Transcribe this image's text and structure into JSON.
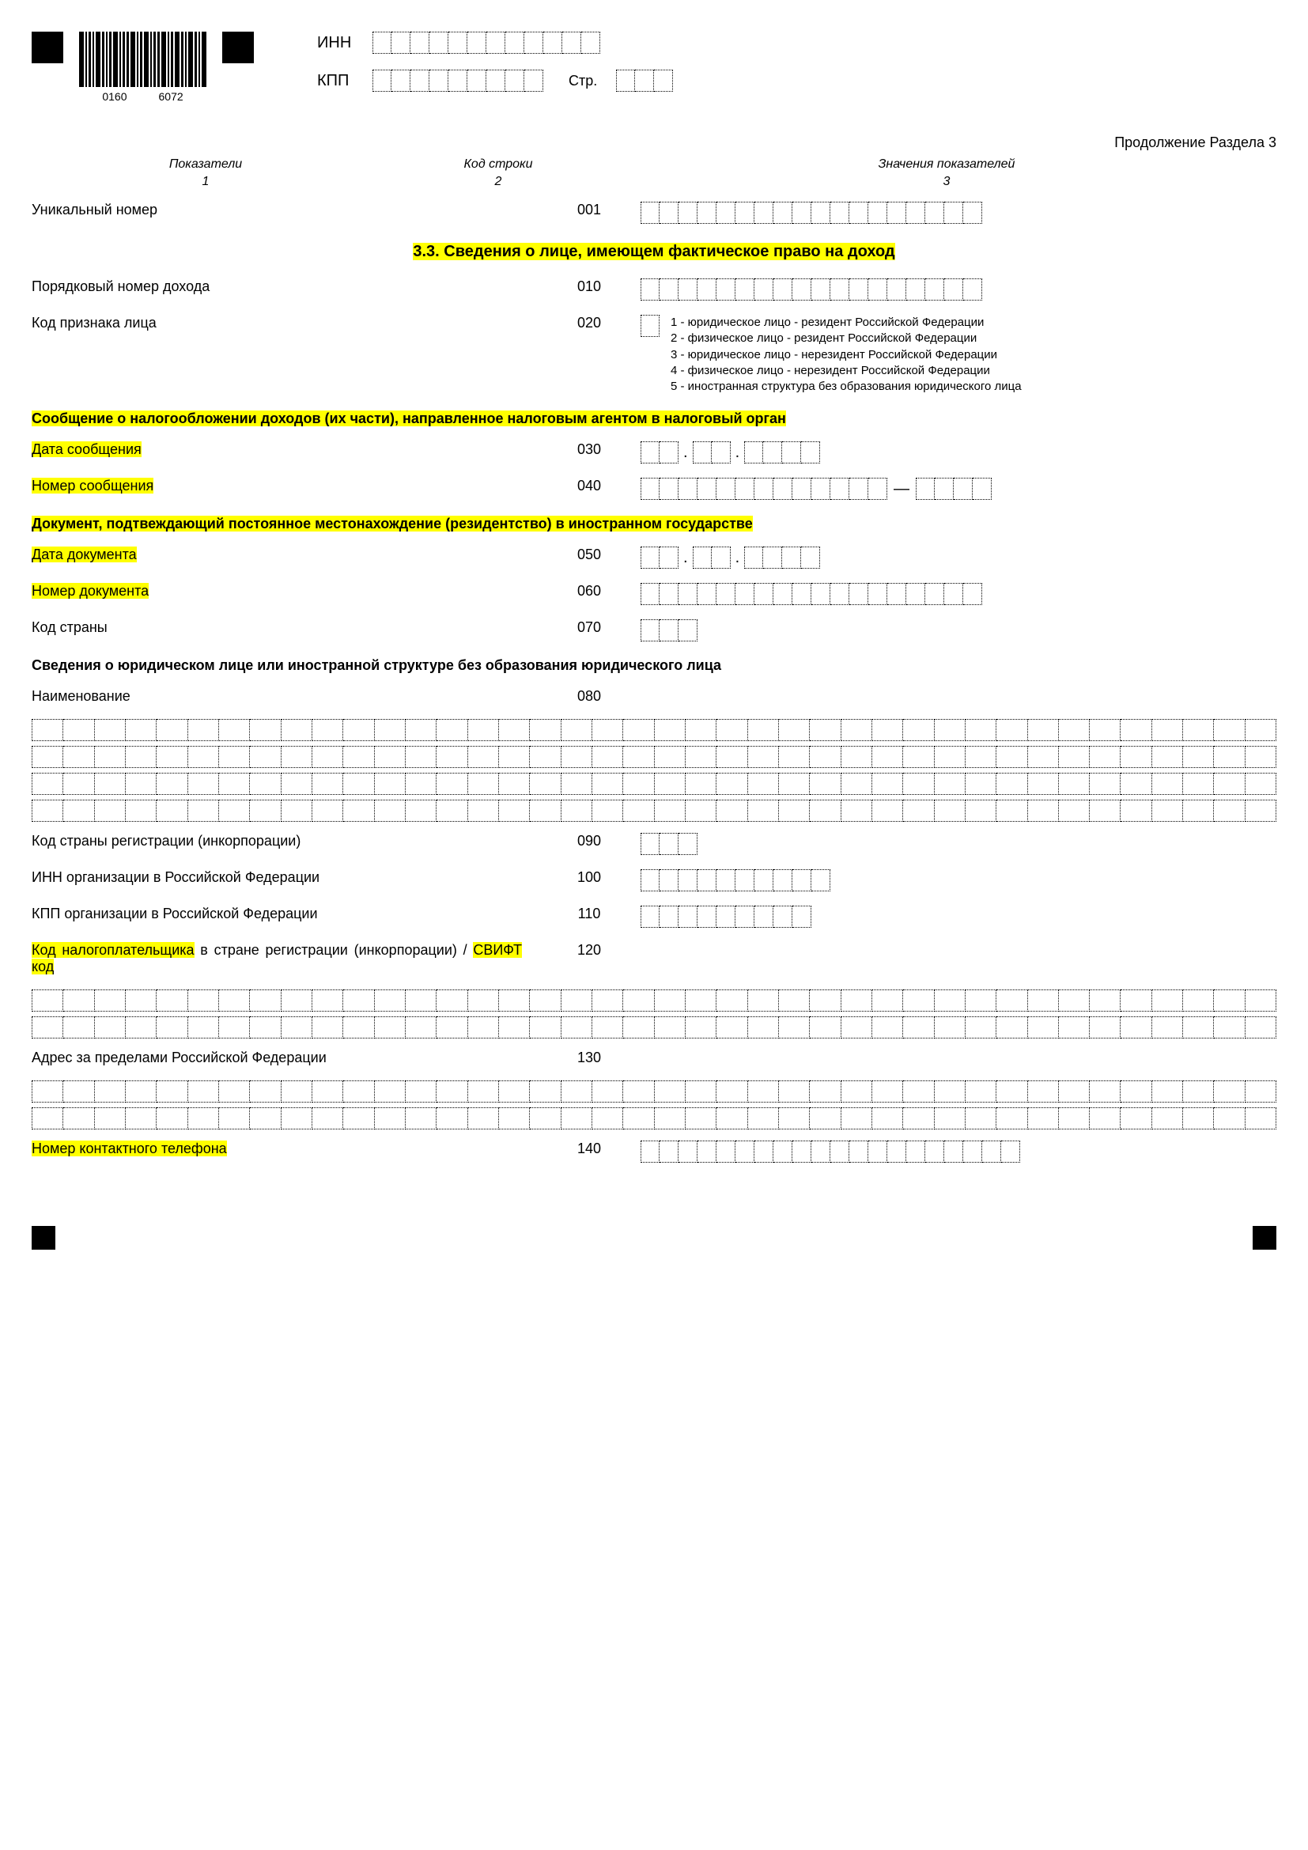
{
  "barcode": {
    "num1": "0160",
    "num2": "6072"
  },
  "header": {
    "inn_label": "ИНН",
    "kpp_label": "КПП",
    "str_label": "Стр.",
    "inn_cells": 12,
    "kpp_cells": 9,
    "str_cells": 3
  },
  "continuation": "Продолжение Раздела 3",
  "columns": {
    "h1": "Показатели",
    "h2": "Код строки",
    "h3": "Значения показателей",
    "n1": "1",
    "n2": "2",
    "n3": "3"
  },
  "section_title": "3.3. Сведения о лице, имеющем фактическое право на доход",
  "legend": {
    "l1": "1 - юридическое лицо - резидент Российской Федерации",
    "l2": "2 - физическое лицо - резидент Российской Федерации",
    "l3": "3 - юридическое лицо - нерезидент Российской Федерации",
    "l4": "4 - физическое лицо - нерезидент Российской Федерации",
    "l5": "5 - иностранная структура без образования юридического лица"
  },
  "rows": {
    "r001": {
      "label": "Уникальный номер",
      "code": "001",
      "cells": 18
    },
    "r010": {
      "label": "Порядковый номер дохода",
      "code": "010",
      "cells": 18
    },
    "r020": {
      "label": "Код признака лица",
      "code": "020",
      "cells": 1
    },
    "r030": {
      "label": "Дата сообщения",
      "code": "030"
    },
    "r040": {
      "label": "Номер сообщения",
      "code": "040"
    },
    "r050": {
      "label": "Дата документа",
      "code": "050"
    },
    "r060": {
      "label": "Номер документа",
      "code": "060",
      "cells": 18
    },
    "r070": {
      "label": "Код страны",
      "code": "070",
      "cells": 3
    },
    "r080": {
      "label": "Наименование",
      "code": "080"
    },
    "r090": {
      "label": "Код страны регистрации (инкорпорации)",
      "code": "090",
      "cells": 3
    },
    "r100": {
      "label": "ИНН организации в Российской Федерации",
      "code": "100",
      "cells": 10
    },
    "r110": {
      "label": "КПП организации в Российской Федерации",
      "code": "110",
      "cells": 9
    },
    "r120": {
      "label_part1": "Код налогоплательщика",
      "label_part2": " в стране регистрации (инкорпорации) / ",
      "label_part3": "СВИФТ код",
      "code": "120"
    },
    "r130": {
      "label": "Адрес за пределами Российской Федерации",
      "code": "130"
    },
    "r140": {
      "label": "Номер контактного телефона",
      "code": "140",
      "cells": 20
    }
  },
  "subsection1": "Сообщение о налогообложении доходов (их части), направленное налоговым агентом в налоговый орган",
  "subsection2": "Документ, подтвеждающий постоянное местонахождение (резидентство) в иностранном государстве",
  "subsection3": "Сведения о юридическом лице или иностранной структуре без образования юридического лица",
  "long_grid_cells": 40,
  "grid_080_rows": 4,
  "grid_120_rows": 2,
  "grid_130_rows": 2
}
